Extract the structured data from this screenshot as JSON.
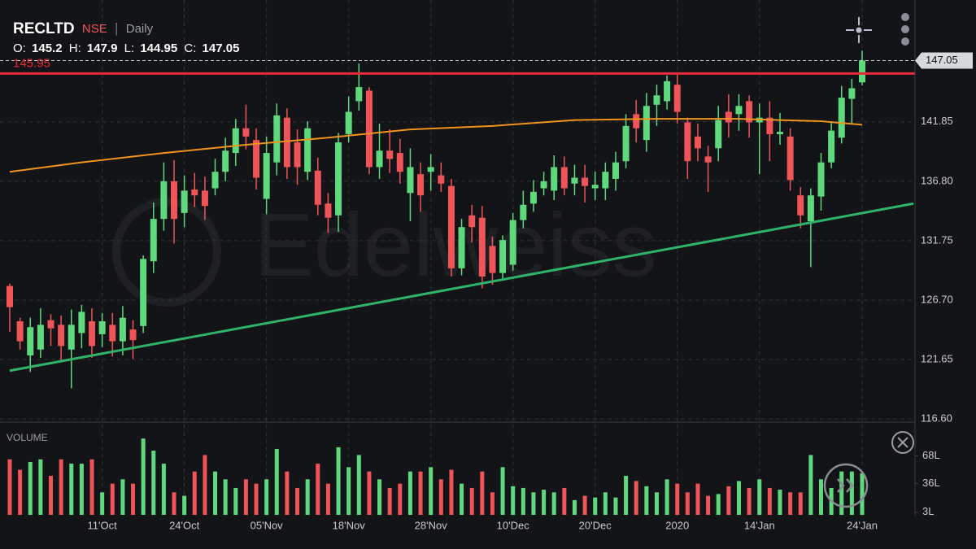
{
  "chart_data": {
    "type": "candlestick",
    "symbol": "RECLTD",
    "exchange": "NSE",
    "interval": "Daily",
    "ohlc_labels": [
      "O:",
      "H:",
      "L:",
      "C:"
    ],
    "watermark": "Edelweiss",
    "categories": [
      null,
      null,
      null,
      null,
      null,
      null,
      null,
      null,
      null,
      "11'Oct",
      null,
      null,
      null,
      null,
      null,
      null,
      null,
      "24'Oct",
      null,
      null,
      null,
      null,
      null,
      null,
      null,
      "05'Nov",
      null,
      null,
      null,
      null,
      null,
      null,
      null,
      "18'Nov",
      null,
      null,
      null,
      null,
      null,
      null,
      null,
      "28'Nov",
      null,
      null,
      null,
      null,
      null,
      null,
      null,
      "10'Dec",
      null,
      null,
      null,
      null,
      null,
      null,
      null,
      "20'Dec",
      null,
      null,
      null,
      null,
      null,
      null,
      null,
      "2020",
      null,
      null,
      null,
      null,
      null,
      null,
      null,
      "14'Jan",
      null,
      null,
      null,
      null,
      null,
      null,
      null,
      null,
      null,
      "24'Jan"
    ],
    "open": [
      127.9,
      124.9,
      122.0,
      122.5,
      125.0,
      124.6,
      122.5,
      123.9,
      124.9,
      123.8,
      124.6,
      123.2,
      124.2,
      124.5,
      130.0,
      133.6,
      136.8,
      134.1,
      136.1,
      136.0,
      136.2,
      137.6,
      139.2,
      141.3,
      140.3,
      135.3,
      138.4,
      142.2,
      140.1,
      137.6,
      137.7,
      134.9,
      133.9,
      140.8,
      143.6,
      144.5,
      138.0,
      139.4,
      139.2,
      135.8,
      137.4,
      137.6,
      137.3,
      136.4,
      129.4,
      133.9,
      133.7,
      131.3,
      129.0,
      129.7,
      133.5,
      134.9,
      136.2,
      136.0,
      138.0,
      136.6,
      137.1,
      136.2,
      136.2,
      137.0,
      138.5,
      142.5,
      140.3,
      143.3,
      143.6,
      145.0,
      141.8,
      140.6,
      138.9,
      139.6,
      142.7,
      142.5,
      143.6,
      141.8,
      142.2,
      140.8,
      140.6,
      135.6,
      133.4,
      135.5,
      138.4,
      140.5,
      143.8,
      145.2
    ],
    "high": [
      128.1,
      125.2,
      125.2,
      126.0,
      125.5,
      125.4,
      125.9,
      126.3,
      126.0,
      125.6,
      125.6,
      126.2,
      125.0,
      130.5,
      135.0,
      138.4,
      138.6,
      137.3,
      137.5,
      137.2,
      138.7,
      140.5,
      142.1,
      143.3,
      141.3,
      140.6,
      143.4,
      143.0,
      141.2,
      141.9,
      138.8,
      135.8,
      140.9,
      144.0,
      146.8,
      144.8,
      141.7,
      141.2,
      140.4,
      139.6,
      138.4,
      139.1,
      138.4,
      137.0,
      133.6,
      134.8,
      134.7,
      132.1,
      132.2,
      134.1,
      136.0,
      136.9,
      137.6,
      139.0,
      138.9,
      138.2,
      138.2,
      137.6,
      138.4,
      139.3,
      142.5,
      143.7,
      144.3,
      145.0,
      145.8,
      146.0,
      142.2,
      141.7,
      139.8,
      143.2,
      144.2,
      144.2,
      144.1,
      143.4,
      143.6,
      142.6,
      141.3,
      136.3,
      136.2,
      139.2,
      141.9,
      144.9,
      145.5,
      147.9
    ],
    "low": [
      124.0,
      122.5,
      120.6,
      121.8,
      122.8,
      121.4,
      119.2,
      122.6,
      121.8,
      122.7,
      121.9,
      122.0,
      121.7,
      123.9,
      129.0,
      132.6,
      131.5,
      132.9,
      134.6,
      133.5,
      135.6,
      136.8,
      138.1,
      139.5,
      136.1,
      134.0,
      137.3,
      137.0,
      136.5,
      136.9,
      133.9,
      132.4,
      132.5,
      140.1,
      142.8,
      137.4,
      137.0,
      137.5,
      136.6,
      133.4,
      134.2,
      136.0,
      135.9,
      128.7,
      128.8,
      131.6,
      127.7,
      128.0,
      128.4,
      129.2,
      132.8,
      134.2,
      135.6,
      135.2,
      135.6,
      135.6,
      135.0,
      135.2,
      135.2,
      136.0,
      137.9,
      140.1,
      139.3,
      141.5,
      142.9,
      141.7,
      137.0,
      138.5,
      135.9,
      138.5,
      140.5,
      141.1,
      140.5,
      137.4,
      138.5,
      139.9,
      136.0,
      132.8,
      129.5,
      134.3,
      137.9,
      140.0,
      141.6,
      144.95
    ],
    "close": [
      126.1,
      123.2,
      124.4,
      124.6,
      124.3,
      122.8,
      124.6,
      125.7,
      122.8,
      124.9,
      123.2,
      125.2,
      123.3,
      130.2,
      133.6,
      136.8,
      133.6,
      136.0,
      135.6,
      134.7,
      137.6,
      139.4,
      141.3,
      140.6,
      137.1,
      139.2,
      142.4,
      138.0,
      138.0,
      141.3,
      134.8,
      133.7,
      140.1,
      142.7,
      144.8,
      138.0,
      139.4,
      138.7,
      137.6,
      138.0,
      135.6,
      138.0,
      136.6,
      129.4,
      132.9,
      132.9,
      128.7,
      129.0,
      131.8,
      133.5,
      134.8,
      135.9,
      136.8,
      138.0,
      136.2,
      137.1,
      136.4,
      136.5,
      137.6,
      138.4,
      141.5,
      141.3,
      143.2,
      144.1,
      145.3,
      142.7,
      138.5,
      139.6,
      138.4,
      142.0,
      141.8,
      143.2,
      141.8,
      142.2,
      140.8,
      141.0,
      136.9,
      133.9,
      135.6,
      138.4,
      141.1,
      143.9,
      144.7,
      147.05
    ],
    "up_color": "#5fd97e",
    "down_color": "#ef5458",
    "ylim": [
      116.4,
      152.2
    ],
    "yticks": [
      {
        "value": 116.6,
        "label": "116.60"
      },
      {
        "value": 121.65,
        "label": "121.65"
      },
      {
        "value": 126.7,
        "label": "126.70"
      },
      {
        "value": 131.75,
        "label": "131.75"
      },
      {
        "value": 136.8,
        "label": "136.80"
      },
      {
        "value": 141.85,
        "label": "141.85"
      }
    ],
    "grid": true,
    "ma": {
      "color": "#f0931e",
      "x": [
        0,
        7,
        15,
        23,
        31,
        39,
        47,
        55,
        63,
        71,
        75,
        79,
        83
      ],
      "values": [
        137.6,
        138.4,
        139.2,
        139.9,
        140.5,
        141.2,
        141.5,
        142.0,
        142.1,
        142.1,
        142.0,
        141.9,
        141.6
      ]
    },
    "resistance": {
      "color": "#e8293a",
      "value": 145.95
    },
    "trendline": {
      "color": "#2fb36a",
      "x": [
        0,
        88
      ],
      "values": [
        120.7,
        134.9
      ]
    },
    "volume": {
      "title": "VOLUME",
      "values": [
        64,
        52,
        61,
        64,
        45,
        64,
        59,
        59,
        64,
        26,
        36,
        41,
        36,
        88,
        74,
        59,
        26,
        22,
        50,
        69,
        50,
        41,
        31,
        41,
        36,
        41,
        76,
        50,
        31,
        41,
        59,
        36,
        78,
        55,
        69,
        50,
        41,
        31,
        36,
        50,
        50,
        55,
        41,
        52,
        36,
        31,
        50,
        26,
        55,
        33,
        31,
        26,
        29,
        26,
        31,
        17,
        22,
        20,
        26,
        20,
        45,
        39,
        33,
        26,
        41,
        36,
        26,
        36,
        22,
        24,
        33,
        39,
        31,
        41,
        31,
        29,
        26,
        26,
        69,
        41,
        31,
        50,
        50,
        48
      ],
      "ylim": [
        0,
        106
      ],
      "yticks": [
        {
          "value": 3,
          "label": "3L"
        },
        {
          "value": 36,
          "label": "36L"
        },
        {
          "value": 68,
          "label": "68L"
        }
      ]
    }
  }
}
